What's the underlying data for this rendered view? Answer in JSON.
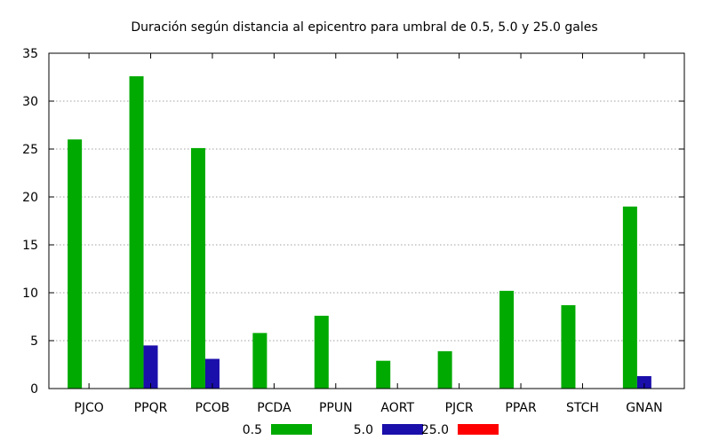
{
  "chart_data": {
    "type": "bar",
    "title": "Duración según distancia al epicentro para umbral de 0.5, 5.0 y 25.0 gales",
    "xlabel": "",
    "ylabel": "",
    "ylim": [
      0,
      35
    ],
    "yticks": [
      0,
      5,
      10,
      15,
      20,
      25,
      30,
      35
    ],
    "grid": true,
    "legend_position": "bottom",
    "categories": [
      "PJCO",
      "PPQR",
      "PCOB",
      "PCDA",
      "PPUN",
      "AORT",
      "PJCR",
      "PPAR",
      "STCH",
      "GNAN"
    ],
    "series": [
      {
        "name": "0.5",
        "color": "#00aa00",
        "values": [
          26.0,
          32.6,
          25.1,
          5.8,
          7.6,
          2.9,
          3.9,
          10.2,
          8.7,
          19.0
        ]
      },
      {
        "name": "5.0",
        "color": "#1a0faa",
        "values": [
          0,
          4.5,
          3.1,
          0,
          0,
          0,
          0,
          0,
          0,
          1.3
        ]
      },
      {
        "name": "25.0",
        "color": "#ff0000",
        "values": [
          0,
          0,
          0,
          0,
          0,
          0,
          0,
          0,
          0,
          0
        ]
      }
    ]
  }
}
